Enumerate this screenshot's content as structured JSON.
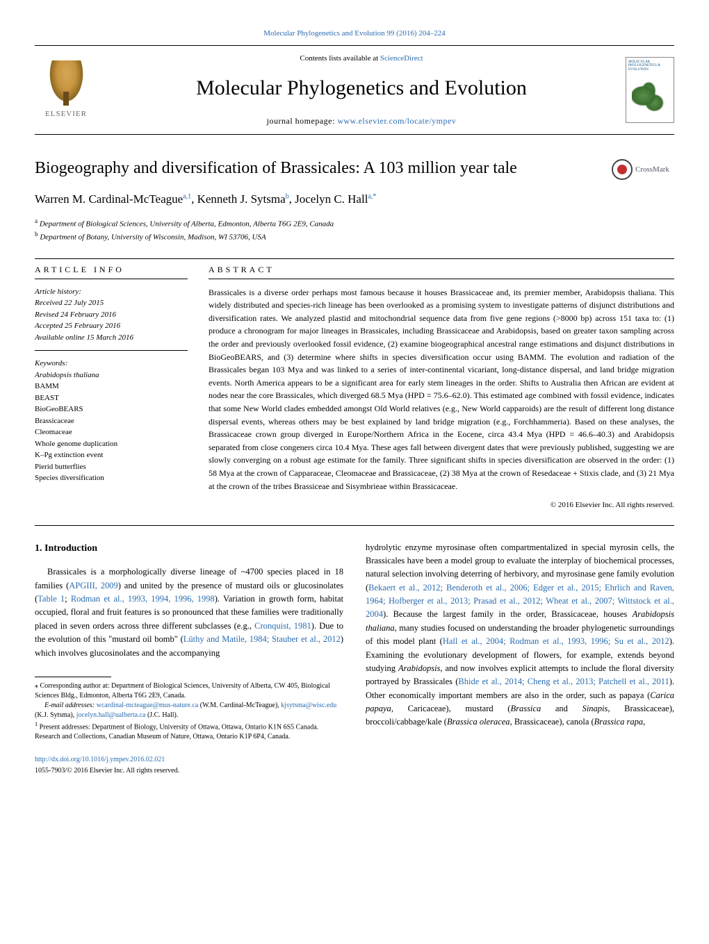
{
  "citation_line": "Molecular Phylogenetics and Evolution 99 (2016) 204–224",
  "header": {
    "contents_line_prefix": "Contents lists available at ",
    "science_direct": "ScienceDirect",
    "journal_name": "Molecular Phylogenetics and Evolution",
    "homepage_prefix": "journal homepage: ",
    "homepage_url": "www.elsevier.com/locate/ympev",
    "publisher_name": "ELSEVIER",
    "cover_text": "MOLECULAR PHYLOGENETICS & EVOLUTION"
  },
  "crossmark_label": "CrossMark",
  "article": {
    "title": "Biogeography and diversification of Brassicales: A 103 million year tale",
    "authors_html": "Warren M. Cardinal-McTeague",
    "author1": "Warren M. Cardinal-McTeague",
    "author1_sup": "a,1",
    "author2": "Kenneth J. Sytsma",
    "author2_sup": "b",
    "author3": "Jocelyn C. Hall",
    "author3_sup": "a,*",
    "affil_a_label": "a",
    "affil_a": "Department of Biological Sciences, University of Alberta, Edmonton, Alberta T6G 2E9, Canada",
    "affil_b_label": "b",
    "affil_b": "Department of Botany, University of Wisconsin, Madison, WI 53706, USA"
  },
  "info_header": "ARTICLE INFO",
  "abstract_header": "ABSTRACT",
  "history": {
    "label": "Article history:",
    "received": "Received 22 July 2015",
    "revised": "Revised 24 February 2016",
    "accepted": "Accepted 25 February 2016",
    "online": "Available online 15 March 2016"
  },
  "keywords_label": "Keywords:",
  "keywords": [
    "Arabidopsis thaliana",
    "BAMM",
    "BEAST",
    "BioGeoBEARS",
    "Brassicaceae",
    "Cleomaceae",
    "Whole genome duplication",
    "K–Pg extinction event",
    "Pierid butterflies",
    "Species diversification"
  ],
  "abstract_text": "Brassicales is a diverse order perhaps most famous because it houses Brassicaceae and, its premier member, Arabidopsis thaliana. This widely distributed and species-rich lineage has been overlooked as a promising system to investigate patterns of disjunct distributions and diversification rates. We analyzed plastid and mitochondrial sequence data from five gene regions (>8000 bp) across 151 taxa to: (1) produce a chronogram for major lineages in Brassicales, including Brassicaceae and Arabidopsis, based on greater taxon sampling across the order and previously overlooked fossil evidence, (2) examine biogeographical ancestral range estimations and disjunct distributions in BioGeoBEARS, and (3) determine where shifts in species diversification occur using BAMM. The evolution and radiation of the Brassicales began 103 Mya and was linked to a series of inter-continental vicariant, long-distance dispersal, and land bridge migration events. North America appears to be a significant area for early stem lineages in the order. Shifts to Australia then African are evident at nodes near the core Brassicales, which diverged 68.5 Mya (HPD = 75.6–62.0). This estimated age combined with fossil evidence, indicates that some New World clades embedded amongst Old World relatives (e.g., New World capparoids) are the result of different long distance dispersal events, whereas others may be best explained by land bridge migration (e.g., Forchhammeria). Based on these analyses, the Brassicaceae crown group diverged in Europe/Northern Africa in the Eocene, circa 43.4 Mya (HPD = 46.6–40.3) and Arabidopsis separated from close congeners circa 10.4 Mya. These ages fall between divergent dates that were previously published, suggesting we are slowly converging on a robust age estimate for the family. Three significant shifts in species diversification are observed in the order: (1) 58 Mya at the crown of Capparaceae, Cleomaceae and Brassicaceae, (2) 38 Mya at the crown of Resedaceae + Stixis clade, and (3) 21 Mya at the crown of the tribes Brassiceae and Sisymbrieae within Brassicaceae.",
  "copyright_line": "© 2016 Elsevier Inc. All rights reserved.",
  "intro_heading": "1. Introduction",
  "body_col1": {
    "p1_prefix": "Brassicales is a morphologically diverse lineage of ~4700 species placed in 18 families (",
    "p1_ref1": "APGIII, 2009",
    "p1_mid1": ") and united by the presence of mustard oils or glucosinolates (",
    "p1_ref2": "Table 1",
    "p1_mid2": "; ",
    "p1_ref3": "Rodman et al., 1993, 1994, 1996, 1998",
    "p1_mid3": "). Variation in growth form, habitat occupied, floral and fruit features is so pronounced that these families were traditionally placed in seven orders across three different subclasses (e.g., ",
    "p1_ref4": "Cronquist, 1981",
    "p1_mid4": "). Due to the evolution of this \"mustard oil bomb\" (",
    "p1_ref5": "Lüthy and Matile, 1984; Stauber et al., 2012",
    "p1_end": ") which involves glucosinolates and the accompanying"
  },
  "footnotes": {
    "corr_marker": "⁎",
    "corr_text": " Corresponding author at: Department of Biological Sciences, University of Alberta, CW 405, Biological Sciences Bldg., Edmonton, Alberta T6G 2E9, Canada.",
    "email_label": "E-mail addresses: ",
    "email1": "wcardinal-mcteague@mus-nature.ca",
    "email1_name": " (W.M. Cardinal-McTeague), ",
    "email2": "kjsytsma@wisc.edu",
    "email2_name": " (K.J. Sytsma), ",
    "email3": "jocelyn.hall@ualberta.ca",
    "email3_name": " (J.C. Hall).",
    "present_marker": "1",
    "present_text": " Present addresses: Department of Biology, University of Ottawa, Ottawa, Ontario K1N 6S5 Canada. Research and Collections, Canadian Museum of Nature, Ottawa, Ontario K1P 6P4, Canada."
  },
  "body_col2": {
    "p1_prefix": "hydrolytic enzyme myrosinase often compartmentalized in special myrosin cells, the Brassicales have been a model group to evaluate the interplay of biochemical processes, natural selection involving deterring of herbivory, and myrosinase gene family evolution (",
    "p1_ref1": "Bekaert et al., 2012; Benderoth et al., 2006; Edger et al., 2015; Ehrlich and Raven, 1964; Hofberger et al., 2013; Prasad et al., 2012; Wheat et al., 2007; Wittstock et al., 2004",
    "p1_mid1": "). Because the largest family in the order, Brassicaceae, houses ",
    "p1_emph1": "Arabidopsis thaliana",
    "p1_mid2": ", many studies focused on understanding the broader phylogenetic surroundings of this model plant (",
    "p1_ref2": "Hall et al., 2004; Rodman et al., 1993, 1996; Su et al., 2012",
    "p1_mid3": "). Examining the evolutionary development of flowers, for example, extends beyond studying ",
    "p1_emph2": "Arabidopsis",
    "p1_mid4": ", and now involves explicit attempts to include the floral diversity portrayed by Brassicales (",
    "p1_ref3": "Bhide et al., 2014; Cheng et al., 2013; Patchell et al., 2011",
    "p1_mid5": "). Other economically important members are also in the order, such as papaya (",
    "p1_emph3": "Carica papaya",
    "p1_mid6": ", Caricaceae), mustard (",
    "p1_emph4": "Brassica",
    "p1_mid7": " and ",
    "p1_emph5": "Sinapis",
    "p1_mid8": ", Brassicaceae), broccoli/cabbage/kale (",
    "p1_emph6": "Brassica oleracea",
    "p1_mid9": ", Brassicaceae), canola (",
    "p1_emph7": "Brassica rapa",
    "p1_end": ","
  },
  "doi": {
    "url": "http://dx.doi.org/10.1016/j.ympev.2016.02.021",
    "issn_line": "1055-7903/© 2016 Elsevier Inc. All rights reserved."
  },
  "colors": {
    "link": "#2a6cb0",
    "text": "#000000",
    "accent_red": "#c03030"
  }
}
